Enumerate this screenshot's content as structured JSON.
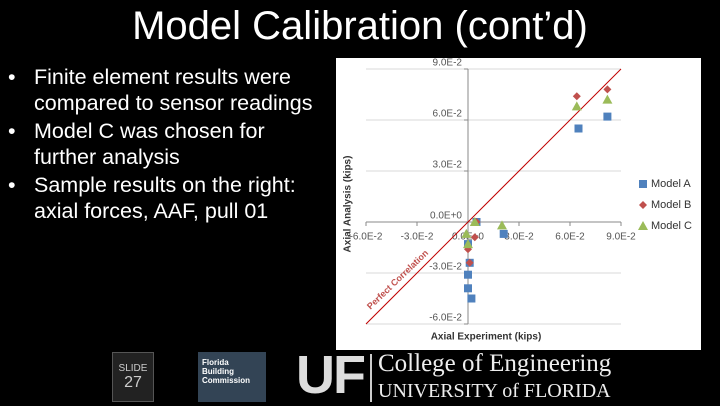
{
  "slide": {
    "title": "Model Calibration (cont’d)",
    "bullets": [
      "Finite element results were compared to sensor readings",
      "Model C was chosen for further analysis",
      "Sample results on the right: axial forces, AAF, pull 01"
    ],
    "footer": {
      "slide_label": "SLIDE",
      "slide_number": "27",
      "partner": "Florida Building Commission",
      "logo": "UF",
      "college": "College of Engineering",
      "university": "UNIVERSITY of FLORIDA"
    }
  },
  "chart_data": {
    "type": "scatter",
    "xlabel": "Axial Experiment (kips)",
    "ylabel": "Axial Analysis (kips)",
    "annotation": "Perfect Correlation",
    "xlim": [
      -0.06,
      0.09
    ],
    "ylim": [
      -0.06,
      0.09
    ],
    "xticks": [
      {
        "value": -0.06,
        "label": "-6.0E-2"
      },
      {
        "value": -0.03,
        "label": "-3.0E-2"
      },
      {
        "value": 0,
        "label": "0.0E+0"
      },
      {
        "value": 0.03,
        "label": "3.0E-2"
      },
      {
        "value": 0.06,
        "label": "6.0E-2"
      },
      {
        "value": 0.09,
        "label": "9.0E-2"
      }
    ],
    "yticks": [
      {
        "value": -0.06,
        "label": "-6.0E-2"
      },
      {
        "value": -0.03,
        "label": "-3.0E-2"
      },
      {
        "value": 0,
        "label": "0.0E+0"
      },
      {
        "value": 0.03,
        "label": "3.0E-2"
      },
      {
        "value": 0.06,
        "label": "6.0E-2"
      },
      {
        "value": 0.09,
        "label": "9.0E-2"
      }
    ],
    "grid": true,
    "legend": "right",
    "series": [
      {
        "name": "Model A",
        "color": "#4f81bd",
        "marker": "square",
        "x": [
          0.082,
          0.065,
          0.021,
          0.005,
          0.0,
          0.0,
          0.002,
          0.001,
          0.0
        ],
        "values": [
          0.062,
          0.055,
          -0.007,
          0.0,
          -0.031,
          -0.039,
          -0.045,
          -0.024,
          -0.013
        ]
      },
      {
        "name": "Model B",
        "color": "#c0504d",
        "marker": "diamond",
        "x": [
          0.082,
          0.064,
          0.0,
          0.001,
          0.004,
          0.005
        ],
        "values": [
          0.078,
          0.074,
          -0.016,
          -0.024,
          -0.009,
          0.0
        ]
      },
      {
        "name": "Model C",
        "color": "#9bbb59",
        "marker": "triangle",
        "x": [
          0.082,
          0.064,
          0.02,
          0.004,
          0.0,
          -0.001
        ],
        "values": [
          0.072,
          0.068,
          -0.002,
          0.0,
          -0.013,
          -0.007
        ]
      }
    ]
  }
}
